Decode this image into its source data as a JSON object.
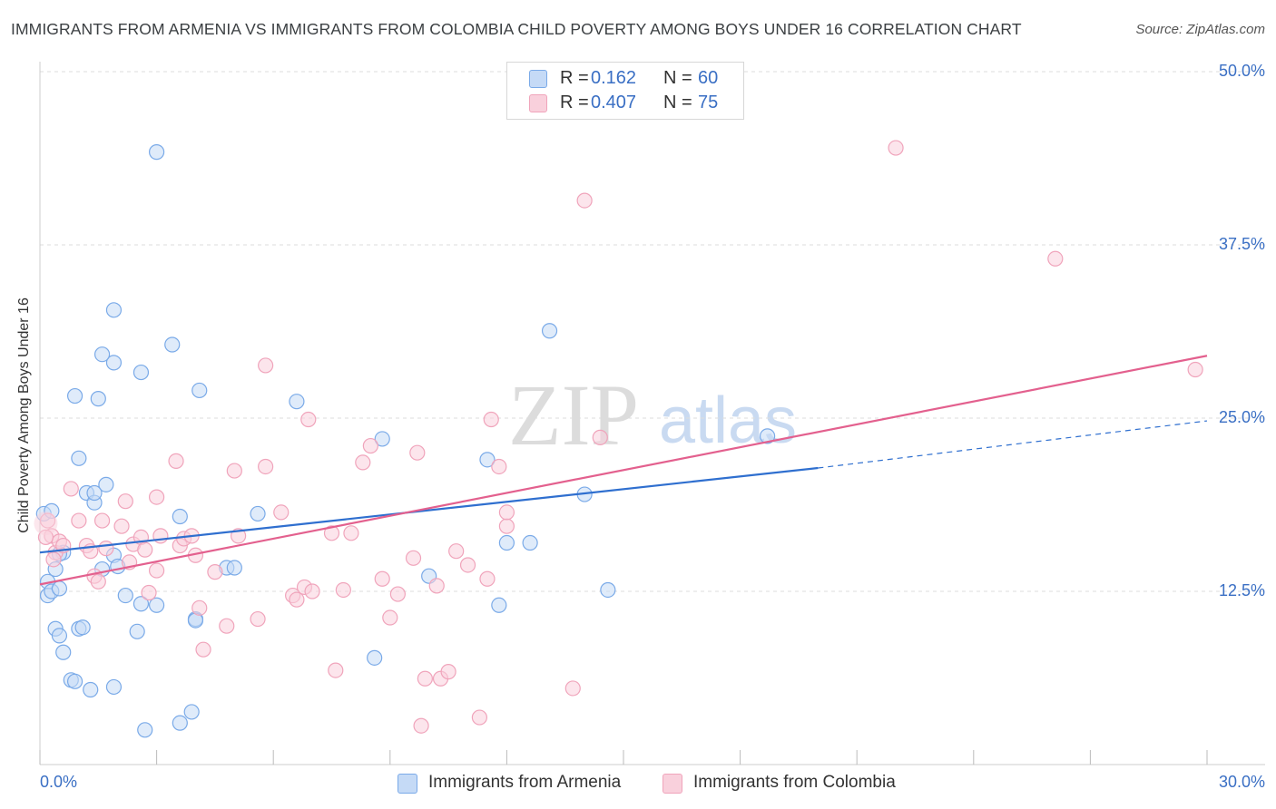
{
  "chart_data": {
    "type": "scatter",
    "title": "IMMIGRANTS FROM ARMENIA VS IMMIGRANTS FROM COLOMBIA CHILD POVERTY AMONG BOYS UNDER 16 CORRELATION CHART",
    "source": "Source: ZipAtlas.com",
    "ylabel": "Child Poverty Among Boys Under 16",
    "xlabel": "",
    "xlim": [
      0,
      30
    ],
    "ylim": [
      0,
      50
    ],
    "x_tick_labels": {
      "min": "0.0%",
      "max": "30.0%"
    },
    "y_ticks": [
      {
        "value": 12.5,
        "label": "12.5%"
      },
      {
        "value": 25.0,
        "label": "25.0%"
      },
      {
        "value": 37.5,
        "label": "37.5%"
      },
      {
        "value": 50.0,
        "label": "50.0%"
      }
    ],
    "watermark": {
      "zip": "ZIP",
      "atlas": "atlas"
    },
    "legend": [
      {
        "r_key": "R =",
        "r_value": "0.162",
        "n_key": "N =",
        "n_value": "60"
      },
      {
        "r_key": "R =",
        "r_value": "0.407",
        "n_key": "N =",
        "n_value": "75"
      }
    ],
    "series": [
      {
        "name": "Immigrants from Armenia",
        "color": "#7aaae8",
        "fill": "#c5daf6",
        "line_color": "#2f6fcf",
        "trend": {
          "x0": 0,
          "y0": 15.3,
          "x1": 20,
          "y1": 21.4,
          "dash_to_x": 30,
          "dash_to_y": 24.8
        },
        "points": [
          [
            0.1,
            18.1
          ],
          [
            0.2,
            13.2
          ],
          [
            0.2,
            12.2
          ],
          [
            0.3,
            18.3
          ],
          [
            0.3,
            12.5
          ],
          [
            0.4,
            14.1
          ],
          [
            0.5,
            12.7
          ],
          [
            0.6,
            15.3
          ],
          [
            0.4,
            9.8
          ],
          [
            0.5,
            9.3
          ],
          [
            0.6,
            8.1
          ],
          [
            0.8,
            6.1
          ],
          [
            0.9,
            6.0
          ],
          [
            1.0,
            9.8
          ],
          [
            1.1,
            9.9
          ],
          [
            1.3,
            5.4
          ],
          [
            1.2,
            19.6
          ],
          [
            1.4,
            18.9
          ],
          [
            1.4,
            19.6
          ],
          [
            1.5,
            26.4
          ],
          [
            1.0,
            22.1
          ],
          [
            0.9,
            26.6
          ],
          [
            1.9,
            15.1
          ],
          [
            2.2,
            12.2
          ],
          [
            1.9,
            29.0
          ],
          [
            2.0,
            14.3
          ],
          [
            1.9,
            5.6
          ],
          [
            1.6,
            29.6
          ],
          [
            1.9,
            32.8
          ],
          [
            1.7,
            20.2
          ],
          [
            2.6,
            11.6
          ],
          [
            2.5,
            9.6
          ],
          [
            2.6,
            28.3
          ],
          [
            3.0,
            44.2
          ],
          [
            2.7,
            2.5
          ],
          [
            3.0,
            11.5
          ],
          [
            3.4,
            30.3
          ],
          [
            3.6,
            3.0
          ],
          [
            3.9,
            3.8
          ],
          [
            3.6,
            17.9
          ],
          [
            4.0,
            10.5
          ],
          [
            4.1,
            27.0
          ],
          [
            4.0,
            10.4
          ],
          [
            4.8,
            14.2
          ],
          [
            5.0,
            14.2
          ],
          [
            5.6,
            18.1
          ],
          [
            6.6,
            26.2
          ],
          [
            8.6,
            7.7
          ],
          [
            8.8,
            23.5
          ],
          [
            10.0,
            13.6
          ],
          [
            11.5,
            22.0
          ],
          [
            11.8,
            11.5
          ],
          [
            12.0,
            16.0
          ],
          [
            12.6,
            16.0
          ],
          [
            13.1,
            31.3
          ],
          [
            14.0,
            19.5
          ],
          [
            14.6,
            12.6
          ],
          [
            18.7,
            23.7
          ],
          [
            0.5,
            15.2
          ],
          [
            1.6,
            14.1
          ]
        ]
      },
      {
        "name": "Immigrants from Colombia",
        "color": "#f0a4bb",
        "fill": "#f9d0dc",
        "line_color": "#e3608e",
        "trend": {
          "x0": 0,
          "y0": 13.0,
          "x1": 30,
          "y1": 29.5
        },
        "points": [
          [
            0.2,
            17.6
          ],
          [
            0.3,
            16.5
          ],
          [
            0.4,
            15.3
          ],
          [
            0.5,
            16.1
          ],
          [
            0.6,
            15.8
          ],
          [
            0.8,
            19.9
          ],
          [
            1.0,
            17.6
          ],
          [
            1.2,
            15.8
          ],
          [
            1.3,
            15.4
          ],
          [
            1.4,
            13.6
          ],
          [
            1.6,
            17.6
          ],
          [
            1.7,
            15.6
          ],
          [
            2.1,
            17.2
          ],
          [
            2.2,
            19.0
          ],
          [
            2.3,
            14.6
          ],
          [
            2.4,
            15.9
          ],
          [
            2.6,
            16.4
          ],
          [
            2.7,
            15.5
          ],
          [
            3.0,
            19.3
          ],
          [
            3.0,
            14.0
          ],
          [
            3.1,
            16.5
          ],
          [
            3.5,
            21.9
          ],
          [
            3.6,
            15.8
          ],
          [
            3.7,
            16.3
          ],
          [
            3.9,
            16.5
          ],
          [
            4.0,
            15.1
          ],
          [
            4.1,
            11.3
          ],
          [
            4.2,
            8.3
          ],
          [
            4.5,
            13.9
          ],
          [
            4.8,
            10.0
          ],
          [
            5.0,
            21.2
          ],
          [
            5.1,
            16.5
          ],
          [
            5.6,
            10.5
          ],
          [
            5.8,
            28.8
          ],
          [
            5.8,
            21.5
          ],
          [
            6.2,
            18.2
          ],
          [
            6.5,
            12.2
          ],
          [
            6.6,
            11.9
          ],
          [
            6.8,
            12.8
          ],
          [
            6.9,
            24.9
          ],
          [
            7.0,
            12.5
          ],
          [
            7.5,
            16.7
          ],
          [
            7.6,
            6.8
          ],
          [
            7.8,
            12.6
          ],
          [
            8.0,
            16.7
          ],
          [
            8.3,
            21.8
          ],
          [
            8.5,
            23.0
          ],
          [
            8.8,
            13.4
          ],
          [
            9.0,
            10.6
          ],
          [
            9.2,
            12.3
          ],
          [
            9.6,
            14.9
          ],
          [
            9.7,
            22.5
          ],
          [
            9.8,
            2.8
          ],
          [
            9.9,
            6.2
          ],
          [
            10.2,
            12.9
          ],
          [
            10.3,
            6.2
          ],
          [
            10.5,
            6.7
          ],
          [
            10.7,
            15.4
          ],
          [
            11.0,
            14.4
          ],
          [
            11.3,
            3.4
          ],
          [
            11.5,
            13.4
          ],
          [
            11.6,
            24.9
          ],
          [
            11.8,
            21.5
          ],
          [
            12.0,
            17.2
          ],
          [
            12.0,
            18.2
          ],
          [
            13.7,
            5.5
          ],
          [
            14.0,
            40.7
          ],
          [
            14.4,
            23.6
          ],
          [
            22.0,
            44.5
          ],
          [
            26.1,
            36.5
          ],
          [
            29.7,
            28.5
          ],
          [
            0.15,
            16.4
          ],
          [
            0.35,
            14.8
          ],
          [
            1.5,
            13.2
          ],
          [
            2.8,
            12.4
          ]
        ]
      }
    ]
  }
}
